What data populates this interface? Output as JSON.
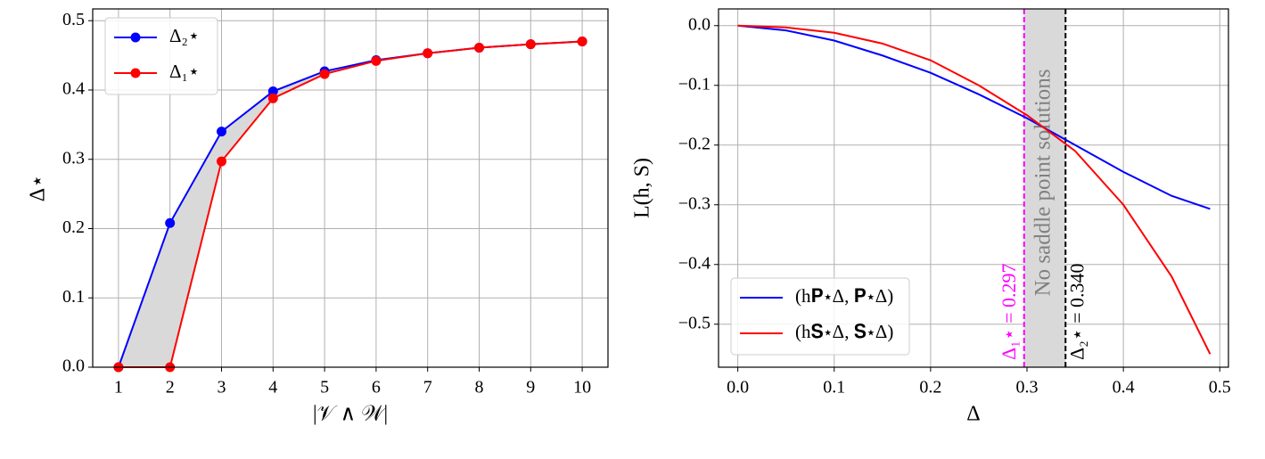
{
  "chart_data": [
    {
      "type": "line",
      "xlabel": "|𝒱 ∧ 𝒲|",
      "ylabel": "Δ⋆",
      "x": [
        1,
        2,
        3,
        4,
        5,
        6,
        7,
        8,
        9,
        10
      ],
      "series": [
        {
          "name": "Δ₂⋆",
          "color": "#0000ff",
          "values": [
            0,
            0.208,
            0.34,
            0.398,
            0.427,
            0.443,
            0.453,
            0.461,
            0.466,
            0.47
          ]
        },
        {
          "name": "Δ₁⋆",
          "color": "#ff0000",
          "values": [
            0,
            0,
            0.297,
            0.388,
            0.423,
            0.442,
            0.453,
            0.461,
            0.466,
            0.47
          ]
        }
      ],
      "markers": true,
      "fill_between": true,
      "fill_color": "#d9d9d9",
      "xlim": [
        0.5,
        10.5
      ],
      "xticks": [
        1,
        2,
        3,
        4,
        5,
        6,
        7,
        8,
        9,
        10
      ],
      "ylim": [
        0,
        0.517
      ],
      "yticks": [
        {
          "value": 0,
          "label": "0.0"
        },
        0.1,
        0.2,
        0.3,
        0.4,
        0.5
      ],
      "grid": true,
      "legend": "upper left"
    },
    {
      "type": "line",
      "xlabel": "Δ",
      "ylabel": "L(h, S)",
      "x": [
        0,
        0.05,
        0.1,
        0.15,
        0.2,
        0.25,
        0.3,
        0.35,
        0.4,
        0.45,
        0.49
      ],
      "series": [
        {
          "name": "(h𝐏⋆Δ, 𝐏⋆Δ)",
          "color": "#0000ff",
          "values": [
            0,
            -0.008,
            -0.025,
            -0.05,
            -0.079,
            -0.115,
            -0.155,
            -0.2,
            -0.245,
            -0.285,
            -0.307
          ]
        },
        {
          "name": "(h𝐒⋆Δ, 𝐒⋆Δ)",
          "color": "#ff0000",
          "values": [
            0,
            -0.003,
            -0.012,
            -0.03,
            -0.058,
            -0.1,
            -0.15,
            -0.21,
            -0.3,
            -0.42,
            -0.55
          ]
        }
      ],
      "markers": false,
      "shade": [
        0.297,
        0.34
      ],
      "shade_color": "#d9d9d9",
      "shade_label": "No saddle point solutions",
      "vlines": [
        {
          "x": 0.297,
          "color": "#ff00ff",
          "label": "Δ₁⋆ = 0.297"
        },
        {
          "x": 0.34,
          "color": "#000000",
          "label": "Δ₂⋆ = 0.340"
        }
      ],
      "xlim": [
        -0.02,
        0.509
      ],
      "xticks": [
        {
          "value": 0,
          "label": "0.0"
        },
        0.1,
        0.2,
        0.3,
        0.4,
        0.5
      ],
      "ylim": [
        -0.572,
        0.028
      ],
      "yticks": [
        {
          "value": 0,
          "label": "0.0"
        },
        {
          "value": -0.1,
          "label": "−0.1"
        },
        {
          "value": -0.2,
          "label": "−0.2"
        },
        {
          "value": -0.3,
          "label": "−0.3"
        },
        {
          "value": -0.4,
          "label": "−0.4"
        },
        {
          "value": -0.5,
          "label": "−0.5"
        }
      ],
      "grid": true,
      "legend": "lower left"
    }
  ]
}
